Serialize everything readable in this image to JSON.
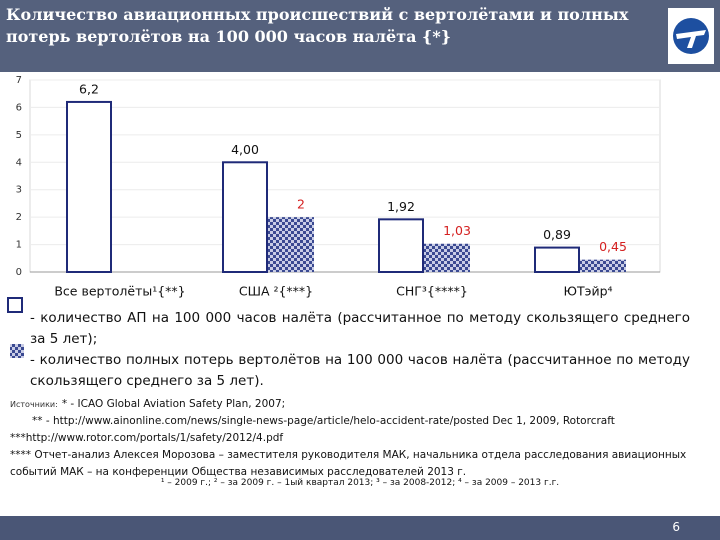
{
  "header": {
    "title": "Количество авиационных происшествий с вертолётами и полных потерь вертолётов на 100 000 часов налёта {*}"
  },
  "chart_data": {
    "type": "bar",
    "categories": [
      "Все вертолёты¹{**}",
      "США ²{***}",
      "СНГ³{****}",
      "ЮТэйр⁴"
    ],
    "series": [
      {
        "name": "- количество АП на 100 000 часов налёта (рассчитанное по методу скользящего среднего за 5 лет);",
        "color": "#1f2a78",
        "style": "outline",
        "label_color": "#111111",
        "values": [
          6.2,
          4.0,
          1.92,
          0.89
        ],
        "value_labels": [
          "6,2",
          "4,00",
          "1,92",
          "0,89"
        ]
      },
      {
        "name": "- количество полных потерь вертолётов на 100 000 часов налёта (рассчитанное по методу скользящего среднего за 5 лет).",
        "color": "#3b4a92",
        "style": "checker",
        "label_color": "#d42020",
        "values": [
          null,
          2,
          1.03,
          0.45
        ],
        "value_labels": [
          null,
          "2",
          "1,03",
          "0,45"
        ]
      }
    ],
    "ylim": [
      0,
      7
    ],
    "yticks": [
      0,
      1,
      2,
      3,
      4,
      5,
      6,
      7
    ],
    "grid": true
  },
  "sources": {
    "label": "Источники:",
    "lines": [
      "* - ICAO Global Aviation Safety Plan, 2007;",
      "** - http://www.ainonline.com/news/single-news-page/article/helo-accident-rate/posted Dec 1, 2009, Rotorcraft",
      "***http://www.rotor.com/portals/1/safety/2012/4.pdf",
      "**** Отчет-анализ Алексея Морозова – заместителя руководителя МАК, начальника отдела расследования авиационных событий МАК – на конференции Общества независимых расследователей 2013 г."
    ]
  },
  "notes": "¹ – 2009 г.; ² – за 2009 г. – 1ый квартал 2013; ³ – за 2008-2012; ⁴ – за 2009 – 2013 г.г.",
  "page_number": "6"
}
